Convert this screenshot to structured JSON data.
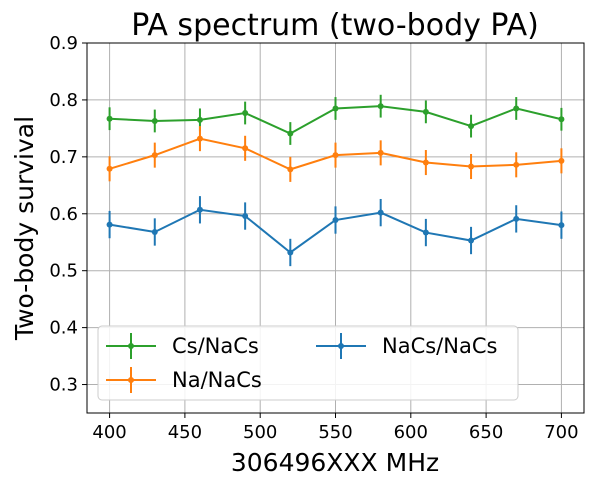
{
  "chart_data": {
    "type": "line",
    "title": "PA spectrum (two-body PA)",
    "xlabel": "306496XXX MHz",
    "ylabel": "Two-body survival",
    "xlim": [
      385,
      715
    ],
    "ylim": [
      0.25,
      0.9
    ],
    "x": [
      400,
      430,
      460,
      490,
      520,
      550,
      580,
      610,
      640,
      670,
      700
    ],
    "x_ticks": [
      400,
      450,
      500,
      550,
      600,
      650,
      700
    ],
    "x_tick_labels": [
      "400",
      "450",
      "500",
      "550",
      "600",
      "650",
      "700"
    ],
    "y_ticks": [
      0.3,
      0.4,
      0.5,
      0.6,
      0.7,
      0.8,
      0.9
    ],
    "y_tick_labels": [
      "0.3",
      "0.4",
      "0.5",
      "0.6",
      "0.7",
      "0.8",
      "0.9"
    ],
    "grid": true,
    "legend_position": "lower-left",
    "legend_columns": 2,
    "series": [
      {
        "name": "Cs/NaCs",
        "color": "#2ca02c",
        "values": [
          0.767,
          0.763,
          0.765,
          0.777,
          0.741,
          0.785,
          0.789,
          0.779,
          0.754,
          0.785,
          0.766
        ],
        "errors": [
          0.02,
          0.02,
          0.02,
          0.02,
          0.02,
          0.02,
          0.02,
          0.02,
          0.02,
          0.02,
          0.02
        ]
      },
      {
        "name": "Na/NaCs",
        "color": "#ff7f0e",
        "values": [
          0.679,
          0.703,
          0.732,
          0.715,
          0.678,
          0.703,
          0.707,
          0.69,
          0.683,
          0.686,
          0.693
        ],
        "errors": [
          0.022,
          0.022,
          0.022,
          0.022,
          0.022,
          0.022,
          0.022,
          0.022,
          0.022,
          0.022,
          0.022
        ]
      },
      {
        "name": "NaCs/NaCs",
        "color": "#1f77b4",
        "values": [
          0.581,
          0.568,
          0.607,
          0.596,
          0.532,
          0.589,
          0.602,
          0.567,
          0.553,
          0.591,
          0.58
        ],
        "errors": [
          0.024,
          0.024,
          0.024,
          0.024,
          0.024,
          0.024,
          0.024,
          0.024,
          0.024,
          0.024,
          0.024
        ]
      }
    ]
  }
}
